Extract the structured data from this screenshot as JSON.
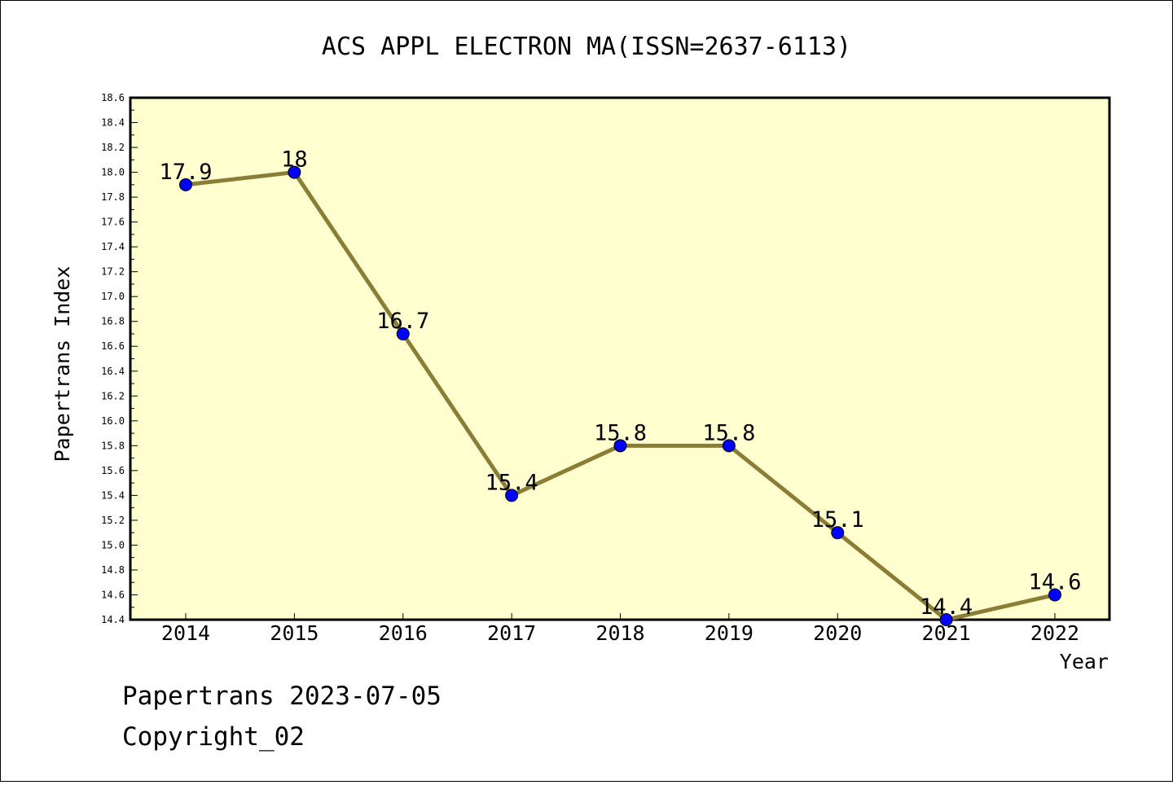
{
  "chart_data": {
    "type": "line",
    "title": "ACS APPL ELECTRON MA(ISSN=2637-6113)",
    "xlabel": "Year",
    "ylabel": "Papertrans Index",
    "categories": [
      "2014",
      "2015",
      "2016",
      "2017",
      "2018",
      "2019",
      "2020",
      "2021",
      "2022"
    ],
    "series": [
      {
        "values": [
          17.9,
          18.0,
          16.7,
          15.4,
          15.8,
          15.8,
          15.1,
          14.4,
          14.6
        ],
        "labels": [
          "17.9",
          "18",
          "16.7",
          "15.4",
          "15.8",
          "15.8",
          "15.1",
          "14.4",
          "14.6"
        ]
      }
    ],
    "ylim": [
      14.4,
      18.6
    ],
    "yticks": [
      "14.4",
      "14.6",
      "14.8",
      "15.0",
      "15.2",
      "15.4",
      "15.6",
      "15.8",
      "16.0",
      "16.2",
      "16.4",
      "16.6",
      "16.8",
      "17.0",
      "17.2",
      "17.4",
      "17.6",
      "17.8",
      "18.0",
      "18.2",
      "18.4",
      "18.6"
    ],
    "grid": false,
    "colors": {
      "plot_background": "#ffffd0",
      "line": "#8b7d35",
      "marker": "#0000ff"
    }
  },
  "footer": {
    "line1": "Papertrans 2023-07-05",
    "line2": "Copyright_02"
  }
}
